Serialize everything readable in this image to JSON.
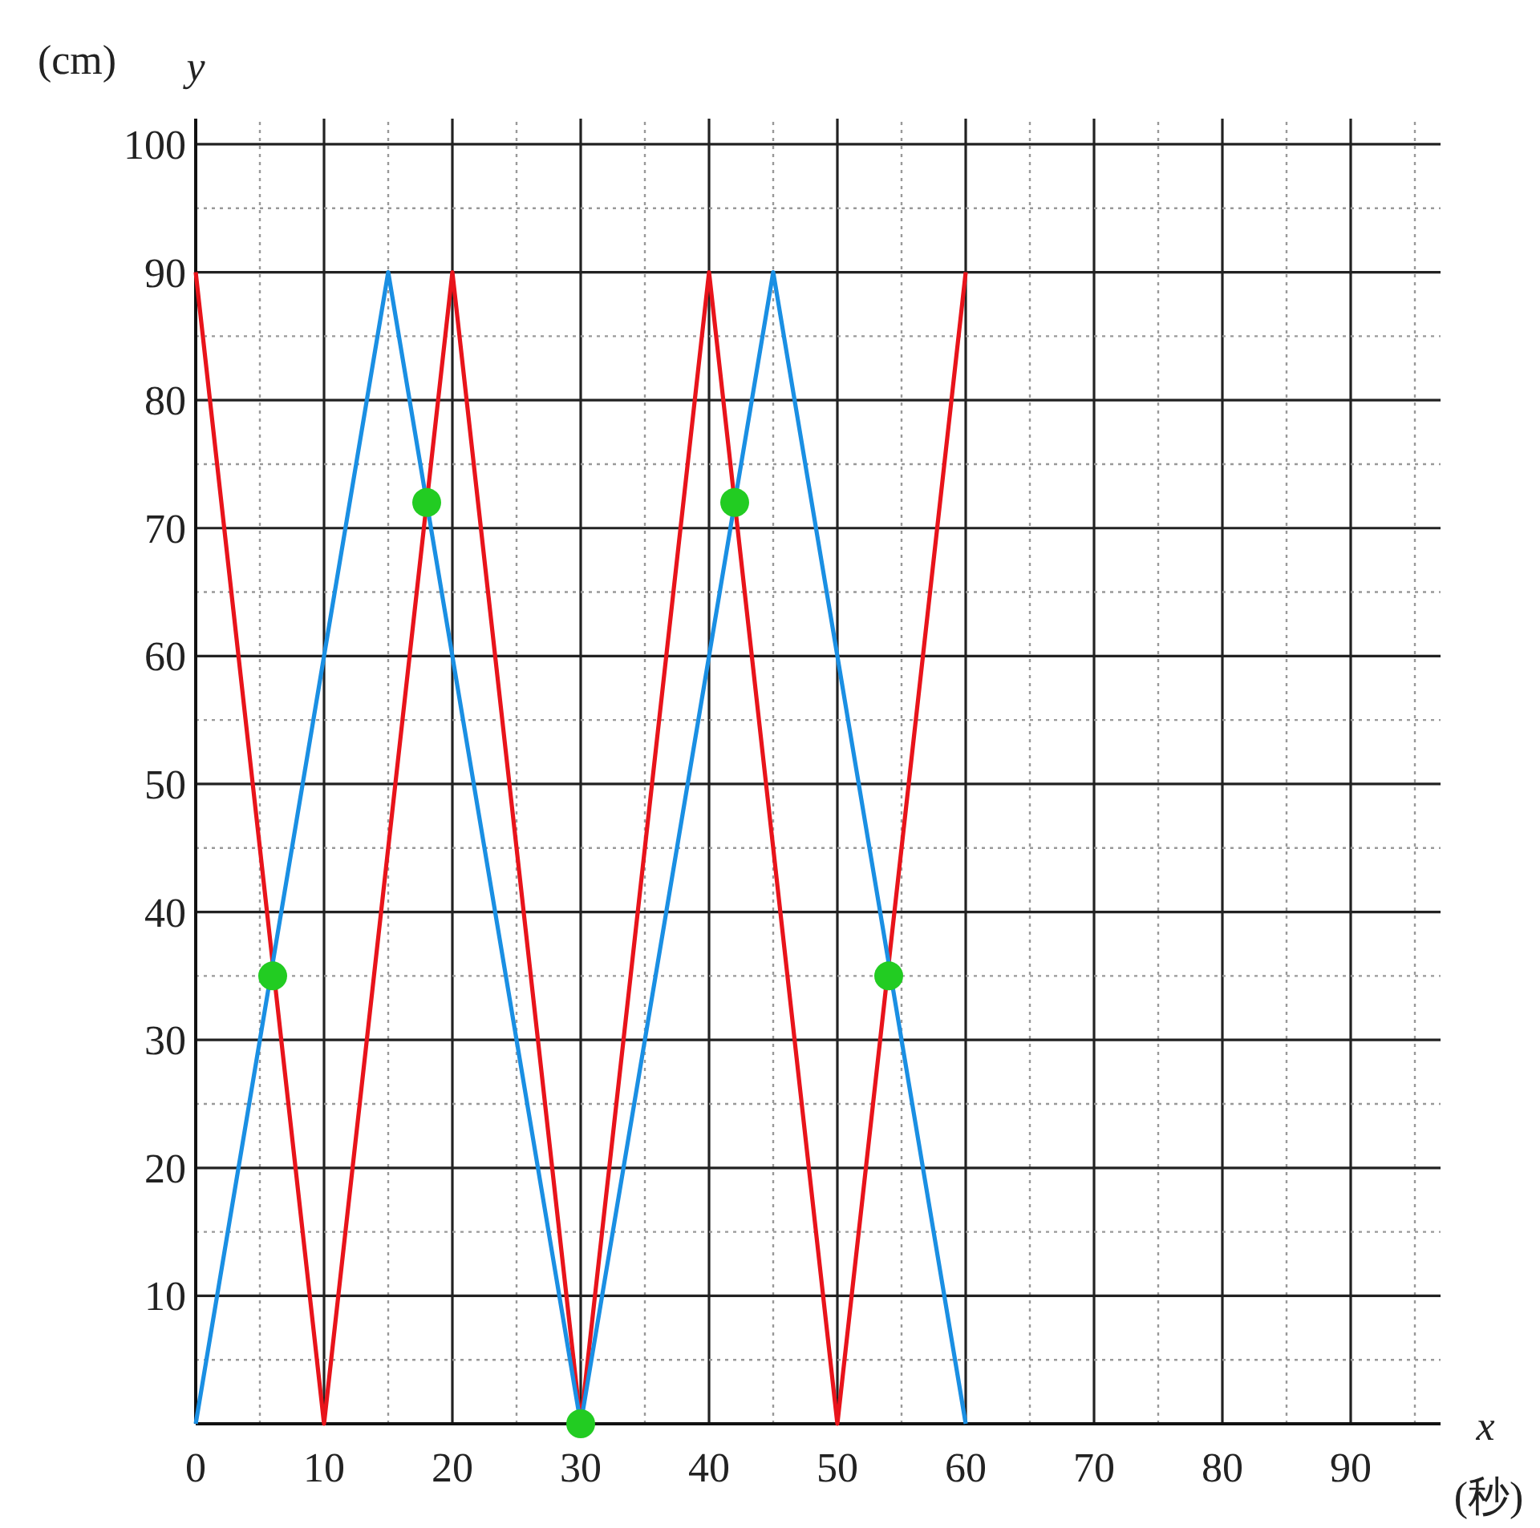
{
  "chart_data": {
    "type": "line",
    "xlabel": "x",
    "ylabel": "y",
    "annotations": [
      "(cm)",
      "(秒)"
    ],
    "xlim": [
      0,
      97
    ],
    "ylim": [
      0,
      102
    ],
    "xticks": [
      0,
      10,
      20,
      30,
      40,
      50,
      60,
      70,
      80,
      90
    ],
    "yticks": [
      10,
      20,
      30,
      40,
      50,
      60,
      70,
      80,
      90,
      100
    ],
    "grid": true,
    "series": [
      {
        "color": "#e8141b",
        "x": [
          0,
          10,
          20,
          30,
          40,
          50,
          60
        ],
        "values": [
          90,
          0,
          90,
          0,
          90,
          0,
          90
        ]
      },
      {
        "color": "#1a8fe3",
        "x": [
          0,
          15,
          30,
          45,
          60
        ],
        "values": [
          0,
          90,
          0,
          90,
          0
        ]
      },
      {
        "type": "scatter",
        "marker": "circle",
        "color": "#22cc22",
        "x": [
          6,
          18,
          30,
          42,
          54
        ],
        "values": [
          35,
          72,
          0,
          72,
          35
        ]
      }
    ]
  }
}
